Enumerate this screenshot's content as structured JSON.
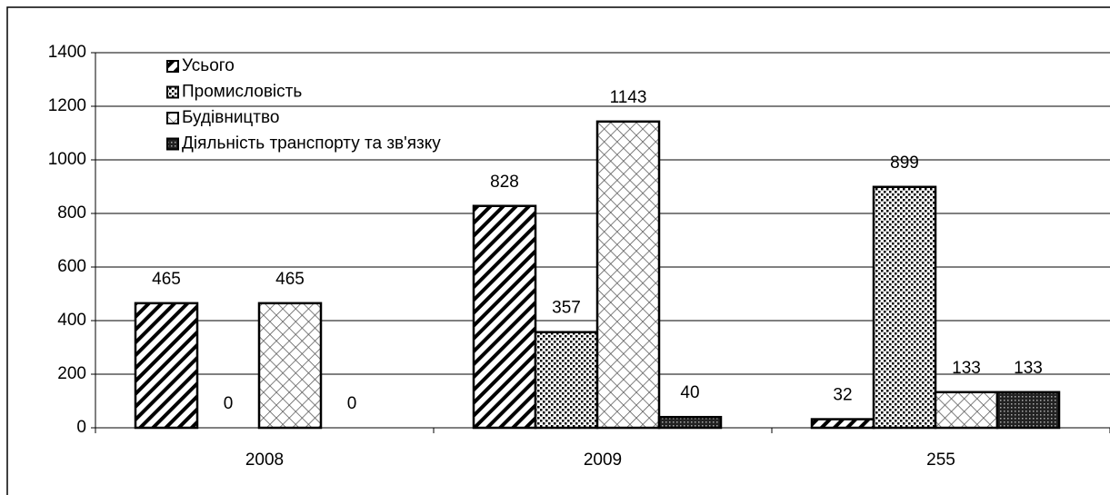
{
  "chart_data": {
    "type": "bar",
    "categories": [
      "2008",
      "2009",
      "255"
    ],
    "series": [
      {
        "name": "Усього",
        "values": [
          465,
          828,
          32
        ]
      },
      {
        "name": "Промисловість",
        "values": [
          0,
          357,
          899
        ]
      },
      {
        "name": "Будівництво",
        "values": [
          465,
          1143,
          133
        ]
      },
      {
        "name": "Діяльність транспорту та зв'язку",
        "values": [
          0,
          40,
          133
        ]
      }
    ],
    "ylim": [
      0,
      1400
    ],
    "yticks": [
      0,
      200,
      400,
      600,
      800,
      1000,
      1200,
      1400
    ],
    "grid": true,
    "legend": "top-left"
  }
}
